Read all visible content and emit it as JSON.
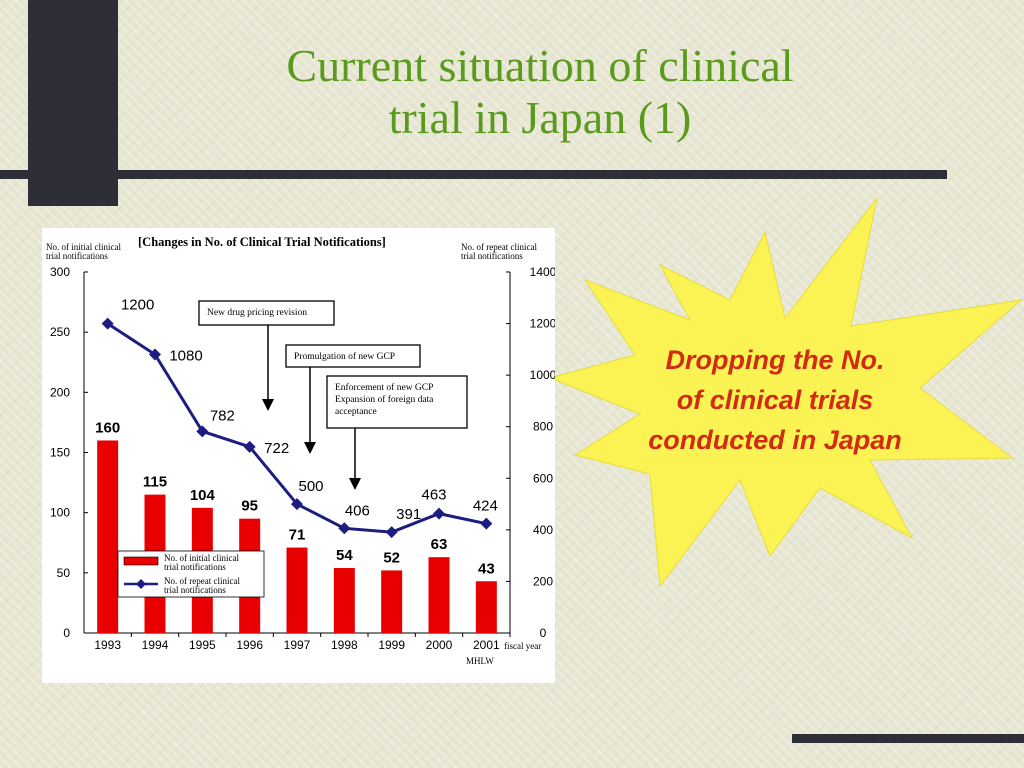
{
  "slide": {
    "title": "Current   situation of clinical\ntrial in Japan (1)",
    "callout": "Dropping the No.\nof clinical trials\nconducted in Japan",
    "colors": {
      "title": "#5a9a1c",
      "callout": "#d12b13",
      "starburst": "#fbf353",
      "bars": "#e80000",
      "line": "#1d1d7f"
    }
  },
  "chart_data": {
    "type": "bar",
    "title": "[Changes in No. of Clinical Trial Notifications]",
    "categories": [
      "1993",
      "1994",
      "1995",
      "1996",
      "1997",
      "1998",
      "1999",
      "2000",
      "2001"
    ],
    "series": [
      {
        "name": "No. of initial clinical trial notifications",
        "type": "bar",
        "axis": "left",
        "values": [
          160,
          115,
          104,
          95,
          71,
          54,
          52,
          63,
          43
        ]
      },
      {
        "name": "No. of repeat clinical trial notifications",
        "type": "line",
        "axis": "right",
        "values": [
          1200,
          1080,
          782,
          722,
          500,
          406,
          391,
          463,
          424
        ]
      }
    ],
    "left_axis_label": "No. of initial clinical trial notifications",
    "right_axis_label": "No. of repeat clinical trial notifications",
    "xlabel": "fiscal year",
    "left_ylim": [
      0,
      300
    ],
    "left_ticks": [
      0,
      50,
      100,
      150,
      200,
      250,
      300
    ],
    "right_ylim": [
      0,
      1400
    ],
    "right_ticks": [
      0,
      200,
      400,
      600,
      800,
      1000,
      1200,
      1400
    ],
    "source": "MHLW",
    "annotations": [
      {
        "lines": [
          "New drug pricing revision"
        ],
        "year": "1995"
      },
      {
        "lines": [
          "Promulgation of new GCP"
        ],
        "year": "1996"
      },
      {
        "lines": [
          "Enforcement of new GCP",
          "Expansion of foreign data",
          "acceptance"
        ],
        "year": "1997"
      }
    ],
    "legend": {
      "position": "bottom-left",
      "items": [
        [
          "No. of initial clinical",
          "trial notifications"
        ],
        [
          "No. of repeat clinical",
          "trial notifications"
        ]
      ]
    },
    "grid": false
  }
}
